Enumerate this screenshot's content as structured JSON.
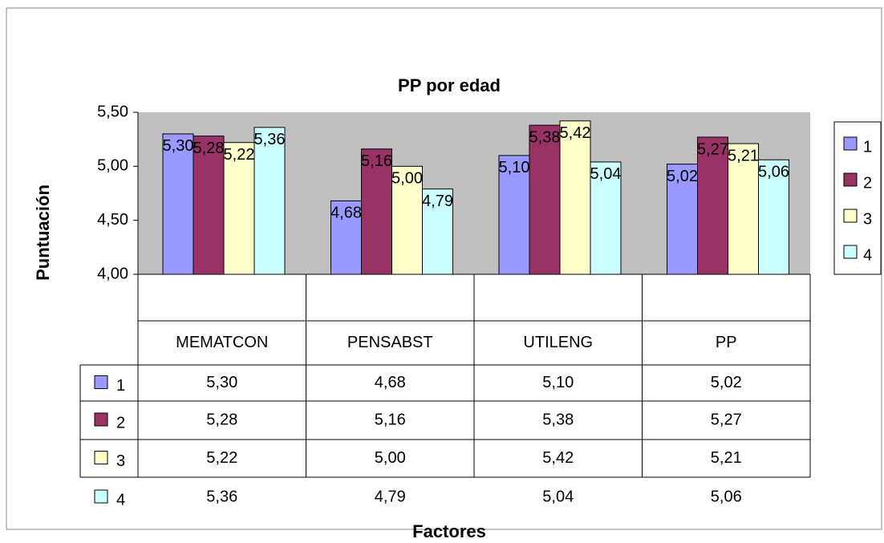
{
  "chart_data": {
    "type": "bar",
    "title": "PP por edad",
    "x_label": "Factores",
    "y_label": "Puntuación",
    "categories": [
      "MEMATCON",
      "PENSABST",
      "UTILENG",
      "PP"
    ],
    "series": [
      {
        "name": "1",
        "color": "#9999ff",
        "values": [
          5.3,
          4.68,
          5.1,
          5.02
        ],
        "value_labels": [
          "5,30",
          "4,68",
          "5,10",
          "5,02"
        ]
      },
      {
        "name": "2",
        "color": "#993366",
        "values": [
          5.28,
          5.16,
          5.38,
          5.27
        ],
        "value_labels": [
          "5,28",
          "5,16",
          "5,38",
          "5,27"
        ]
      },
      {
        "name": "3",
        "color": "#ffffcc",
        "values": [
          5.22,
          5.0,
          5.42,
          5.21
        ],
        "value_labels": [
          "5,22",
          "5,00",
          "5,42",
          "5,21"
        ]
      },
      {
        "name": "4",
        "color": "#ccffff",
        "values": [
          5.36,
          4.79,
          5.04,
          5.06
        ],
        "value_labels": [
          "5,36",
          "4,79",
          "5,04",
          "5,06"
        ]
      }
    ],
    "ylim": [
      4.0,
      5.5
    ],
    "yticks": [
      {
        "value": 4.0,
        "label": "4,00"
      },
      {
        "value": 4.5,
        "label": "4,50"
      },
      {
        "value": 5.0,
        "label": "5,00"
      },
      {
        "value": 5.5,
        "label": "5,50"
      }
    ],
    "plot_background": "#c0c0c0",
    "legend": "right",
    "data_table": true
  }
}
